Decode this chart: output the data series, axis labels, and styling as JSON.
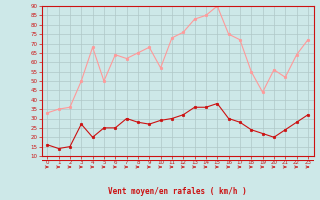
{
  "x": [
    0,
    1,
    2,
    3,
    4,
    5,
    6,
    7,
    8,
    9,
    10,
    11,
    12,
    13,
    14,
    15,
    16,
    17,
    18,
    19,
    20,
    21,
    22,
    23
  ],
  "wind_avg": [
    16,
    14,
    15,
    27,
    20,
    25,
    25,
    30,
    28,
    27,
    29,
    30,
    32,
    36,
    36,
    38,
    30,
    28,
    24,
    22,
    20,
    24,
    28,
    32
  ],
  "wind_gust": [
    33,
    35,
    36,
    50,
    68,
    50,
    64,
    62,
    65,
    68,
    57,
    73,
    76,
    83,
    85,
    90,
    75,
    72,
    55,
    44,
    56,
    52,
    64,
    72
  ],
  "bg_color": "#cde8e8",
  "grid_color": "#b0c8c8",
  "avg_color": "#cc1111",
  "gust_color": "#ff9999",
  "arrow_color": "#cc1111",
  "xlabel": "Vent moyen/en rafales ( km/h )",
  "xlabel_color": "#cc1111",
  "tick_color": "#cc1111",
  "spine_color": "#cc1111",
  "ylim_min": 10,
  "ylim_max": 90,
  "yticks": [
    10,
    15,
    20,
    25,
    30,
    35,
    40,
    45,
    50,
    55,
    60,
    65,
    70,
    75,
    80,
    85,
    90
  ],
  "xticks": [
    0,
    1,
    2,
    3,
    4,
    5,
    6,
    7,
    8,
    9,
    10,
    11,
    12,
    13,
    14,
    15,
    16,
    17,
    18,
    19,
    20,
    21,
    22,
    23
  ]
}
